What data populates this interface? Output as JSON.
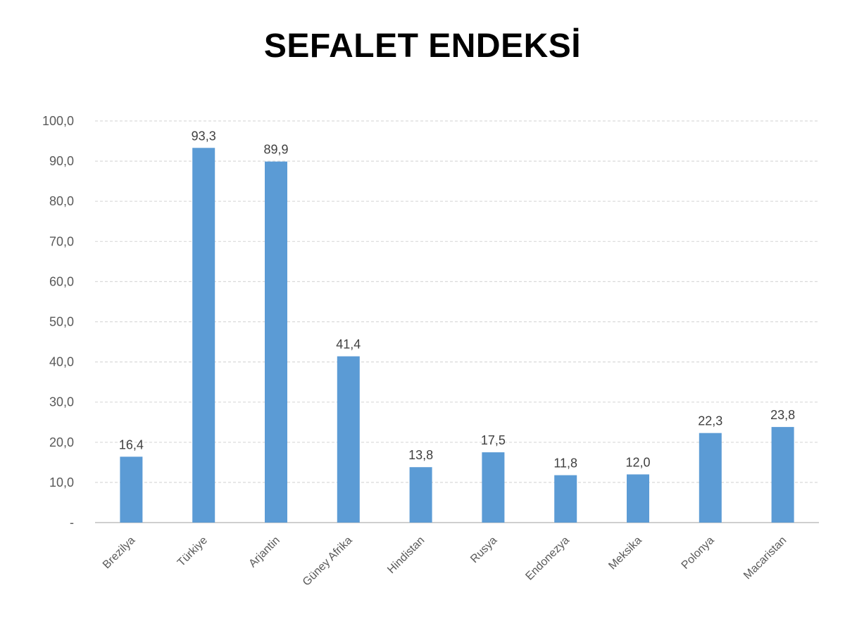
{
  "chart_data": {
    "type": "bar",
    "title": "SEFALET ENDEKSİ",
    "categories": [
      "Brezilya",
      "Türkiye",
      "Arjantin",
      "Güney Afrika",
      "Hindistan",
      "Rusya",
      "Endonezya",
      "Meksika",
      "Polonya",
      "Macaristan"
    ],
    "values": [
      16.4,
      93.3,
      89.9,
      41.4,
      13.8,
      17.5,
      11.8,
      12.0,
      22.3,
      23.8
    ],
    "data_labels": [
      "16,4",
      "93,3",
      "89,9",
      "41,4",
      "13,8",
      "17,5",
      "11,8",
      "12,0",
      "22,3",
      "23,8"
    ],
    "ylim": [
      0,
      100
    ],
    "y_ticks": [
      0,
      10,
      20,
      30,
      40,
      50,
      60,
      70,
      80,
      90,
      100
    ],
    "y_tick_labels": [
      "-",
      "10,0",
      "20,0",
      "30,0",
      "40,0",
      "50,0",
      "60,0",
      "70,0",
      "80,0",
      "90,0",
      "100,0"
    ],
    "xlabel": "",
    "ylabel": "",
    "grid": true,
    "legend": "none",
    "bar_color": "#5B9BD5",
    "grid_color": "#D9D9D9"
  }
}
